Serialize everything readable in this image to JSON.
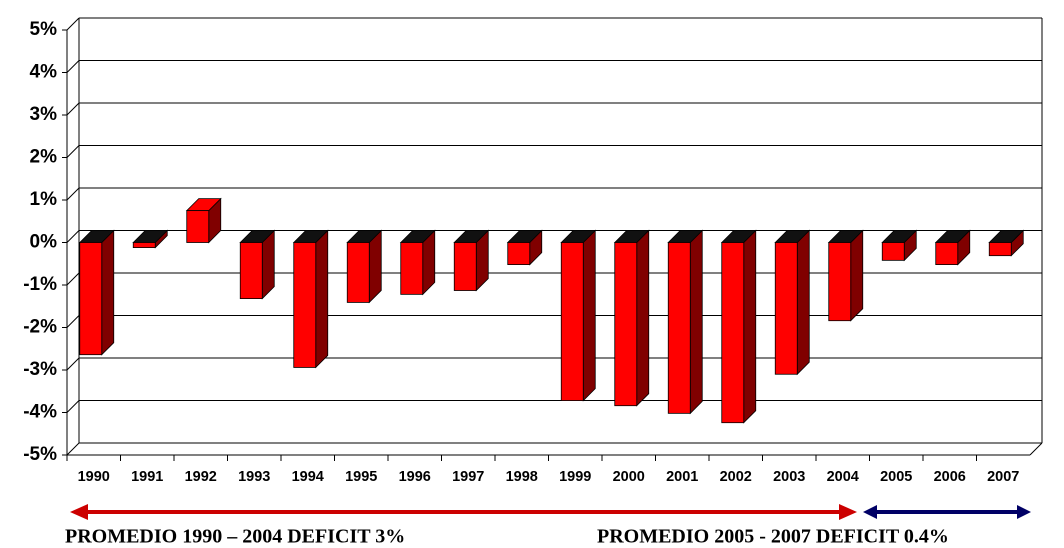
{
  "chart_data": {
    "type": "bar3d",
    "categories": [
      "1990",
      "1991",
      "1992",
      "1993",
      "1994",
      "1995",
      "1996",
      "1997",
      "1998",
      "1999",
      "2000",
      "2001",
      "2002",
      "2003",
      "2004",
      "2005",
      "2006",
      "2007"
    ],
    "values": [
      -2.64,
      -0.12,
      0.75,
      -1.32,
      -2.94,
      -1.41,
      -1.22,
      -1.13,
      -0.52,
      -3.72,
      -3.84,
      -4.02,
      -4.24,
      -3.1,
      -1.84,
      -0.42,
      -0.52,
      -0.31
    ],
    "color": "#ff0000",
    "ylim": [
      -5,
      5
    ],
    "yticks": [
      {
        "value": -5,
        "label": "-5%"
      },
      {
        "value": -4,
        "label": "-4%"
      },
      {
        "value": -3,
        "label": "-3%"
      },
      {
        "value": -2,
        "label": "-2%"
      },
      {
        "value": -1,
        "label": "-1%"
      },
      {
        "value": 0,
        "label": "0%"
      },
      {
        "value": 1,
        "label": "1%"
      },
      {
        "value": 2,
        "label": "2%"
      },
      {
        "value": 3,
        "label": "3%"
      },
      {
        "value": 4,
        "label": "4%"
      },
      {
        "value": 5,
        "label": "5%"
      }
    ],
    "grid": true,
    "annotations": [
      "PROMEDIO 1990 – 2004 DEFICIT 3%",
      "PROMEDIO 2005 - 2007 DEFICIT 0.4%"
    ]
  }
}
